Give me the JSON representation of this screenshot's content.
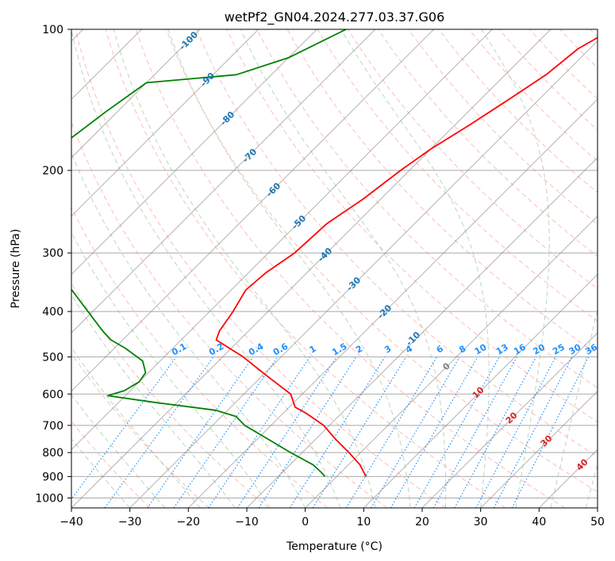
{
  "chart_data": {
    "type": "line",
    "diagram": "skew-t log-p",
    "title": "wetPf2_GN04.2024.277.03.37.G06",
    "xlabel": "Temperature (°C)",
    "ylabel": "Pressure (hPa)",
    "xlim": [
      -40,
      50
    ],
    "ylim": [
      1050,
      100
    ],
    "yscale": "log",
    "grid": true,
    "x_ticks": [
      -40,
      -30,
      -20,
      -10,
      0,
      10,
      20,
      30,
      40,
      50
    ],
    "y_ticks": [
      100,
      200,
      300,
      400,
      500,
      600,
      700,
      800,
      900,
      1000
    ],
    "series": [
      {
        "role": "temperature",
        "color": "#ff0000",
        "points": [
          [
            100,
            -29.5
          ],
          [
            110,
            -32.0
          ],
          [
            125,
            -33.0
          ],
          [
            140,
            -35.0
          ],
          [
            160,
            -37.5
          ],
          [
            180,
            -40.0
          ],
          [
            200,
            -41.5
          ],
          [
            230,
            -43.0
          ],
          [
            260,
            -45.0
          ],
          [
            300,
            -45.5
          ],
          [
            330,
            -47.0
          ],
          [
            360,
            -47.5
          ],
          [
            400,
            -46.0
          ],
          [
            440,
            -45.0
          ],
          [
            460,
            -44.0
          ],
          [
            500,
            -36.5
          ],
          [
            550,
            -29.0
          ],
          [
            600,
            -22.0
          ],
          [
            640,
            -19.0
          ],
          [
            660,
            -16.0
          ],
          [
            700,
            -11.0
          ],
          [
            750,
            -6.5
          ],
          [
            800,
            -2.0
          ],
          [
            850,
            2.0
          ],
          [
            900,
            5.0
          ]
        ]
      },
      {
        "role": "dewpoint",
        "color": "#008000",
        "points": [
          [
            100,
            -75.0
          ],
          [
            115,
            -80.0
          ],
          [
            125,
            -86.0
          ],
          [
            130,
            -100.0
          ],
          [
            150,
            -102.0
          ],
          [
            180,
            -104.0
          ],
          [
            200,
            -105.0
          ],
          [
            225,
            -106.0
          ],
          [
            440,
            -65.0
          ],
          [
            460,
            -62.0
          ],
          [
            480,
            -58.0
          ],
          [
            510,
            -53.0
          ],
          [
            540,
            -50.5
          ],
          [
            565,
            -50.0
          ],
          [
            590,
            -51.0
          ],
          [
            605,
            -53.0
          ],
          [
            625,
            -44.0
          ],
          [
            650,
            -32.0
          ],
          [
            670,
            -27.5
          ],
          [
            700,
            -24.5
          ],
          [
            750,
            -18.0
          ],
          [
            800,
            -12.0
          ],
          [
            850,
            -6.0
          ],
          [
            880,
            -3.5
          ],
          [
            900,
            -2.0
          ]
        ]
      }
    ],
    "isotherm_labels": [
      "-100",
      "-90",
      "-80",
      "-70",
      "-60",
      "-50",
      "-40",
      "-30",
      "-20",
      "-10",
      "0",
      "10",
      "20",
      "30",
      "40"
    ],
    "mixing_ratio_labels": [
      "0.1",
      "0.2",
      "0.4",
      "0.6",
      "1",
      "1.5",
      "2",
      "3",
      "4",
      "6",
      "8",
      "10",
      "13",
      "16",
      "20",
      "25",
      "30",
      "36"
    ],
    "mixing_ratio_values": [
      0.1,
      0.2,
      0.4,
      0.6,
      1,
      1.5,
      2,
      3,
      4,
      6,
      8,
      10,
      13,
      16,
      20,
      25,
      30,
      36
    ],
    "colors": {
      "isotherm": "#808080",
      "isobar": "#a9a9a9",
      "dry_adiabat": "#fa8072",
      "moist_adiabat": "#8fbc8f",
      "mixing_ratio": "#1e90ff",
      "isotherm_label_cold": "#1f77b4",
      "isotherm_label_zero": "#808080",
      "isotherm_label_warm": "#d62728",
      "mixing_ratio_label": "#1e90ff"
    }
  }
}
